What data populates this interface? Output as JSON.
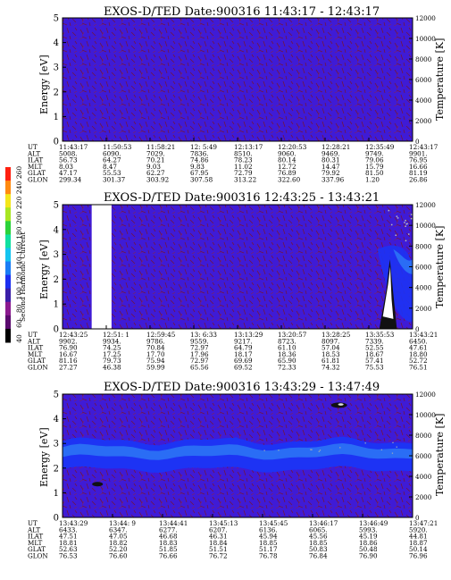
{
  "colors": {
    "background_fill": "#3f1bd6",
    "band_outer": "#1d33f4",
    "band_inner": "#2a6df5",
    "noise": "#7a1428",
    "hot": "#ffffff",
    "gap": "#ffffff"
  },
  "colorbar": {
    "label": "Second Harmonic Current",
    "ticks": [
      "40",
      "60",
      "80",
      "100",
      "120",
      "140",
      "160",
      "180",
      "200",
      "220",
      "240",
      "260"
    ],
    "colors": [
      "#000000",
      "#5a0a6e",
      "#8b1a8f",
      "#3a1ea8",
      "#1c2ff0",
      "#1a7df5",
      "#14c4f0",
      "#10e0a0",
      "#2cd23a",
      "#a8e622",
      "#f4e61a",
      "#ff8a10",
      "#ff2010"
    ]
  },
  "chart_data": [
    {
      "type": "heatmap",
      "title": "EXOS-D/TED   Date:900316   11:43:17 - 12:43:17",
      "ylabel": "Energy [eV]",
      "y2label": "Temperature [K]",
      "ylim": [
        0,
        5
      ],
      "yticks": [
        "0",
        "1",
        "2",
        "3",
        "4",
        "5"
      ],
      "y2lim": [
        0,
        12000
      ],
      "y2ticks": [
        "0",
        "2000",
        "4000",
        "6000",
        "8000",
        "10000",
        "12000"
      ],
      "row_labels": [
        "UT",
        "ALT",
        "ILAT",
        "MLT",
        "GLAT",
        "GLON"
      ],
      "table": [
        [
          "11:43:17",
          "11:50:53",
          "11:58:21",
          "12: 5:49",
          "12:13:17",
          "12:20:53",
          "12:28:21",
          "12:35:49",
          "12:43:17"
        ],
        [
          "5008.",
          "6090.",
          "7029.",
          "7836.",
          "8510.",
          "9060.",
          "9469.",
          "9749.",
          "9901."
        ],
        [
          "56.73",
          "64.27",
          "70.21",
          "74.86",
          "78.23",
          "80.14",
          "80.31",
          "79.06",
          "76.95"
        ],
        [
          "8.03",
          "8.47",
          "9.03",
          "9.83",
          "11.02",
          "12.72",
          "14.47",
          "15.79",
          "16.66"
        ],
        [
          "47.17",
          "55.53",
          "62.27",
          "67.95",
          "72.79",
          "76.89",
          "79.92",
          "81.50",
          "81.19"
        ],
        [
          "299.34",
          "301.37",
          "303.92",
          "307.58",
          "313.22",
          "322.60",
          "337.96",
          "1.20",
          "26.86"
        ]
      ]
    },
    {
      "type": "heatmap",
      "title": "EXOS-D/TED   Date:900316   12:43:25 - 13:43:21",
      "ylabel": "Energy [eV]",
      "y2label": "Temperature [K]",
      "ylim": [
        0,
        5
      ],
      "yticks": [
        "0",
        "1",
        "2",
        "3",
        "4",
        "5"
      ],
      "y2lim": [
        0,
        12000
      ],
      "y2ticks": [
        "0",
        "2000",
        "4000",
        "6000",
        "8000",
        "10000",
        "12000"
      ],
      "data_gap_x": [
        0.0833,
        0.14
      ],
      "row_labels": [
        "UT",
        "ALT",
        "ILAT",
        "MLT",
        "GLAT",
        "GLON"
      ],
      "table": [
        [
          "12:43:25",
          "12:51: 1",
          "12:59:45",
          "13: 6:33",
          "13:13:29",
          "13:20:57",
          "13:28:25",
          "13:35:53",
          "13:43:21"
        ],
        [
          "9902.",
          "9934.",
          "9786.",
          "9559.",
          "9217.",
          "8723.",
          "8097.",
          "7339.",
          "6450."
        ],
        [
          "76.90",
          "74.25",
          "70.84",
          "72.97",
          "64.79",
          "61.10",
          "57.04",
          "52.55",
          "47.61"
        ],
        [
          "16.67",
          "17.25",
          "17.70",
          "17.96",
          "18.17",
          "18.36",
          "18.53",
          "18.67",
          "18.80"
        ],
        [
          "81.16",
          "79.73",
          "75.94",
          "72.97",
          "69.69",
          "65.90",
          "61.81",
          "57.41",
          "52.72"
        ],
        [
          "27.27",
          "46.38",
          "59.99",
          "65.56",
          "69.52",
          "72.33",
          "74.32",
          "75.53",
          "76.51"
        ]
      ]
    },
    {
      "type": "heatmap",
      "title": "EXOS-D/TED   Date:900316   13:43:29 - 13:47:49",
      "ylabel": "Energy [eV]",
      "y2label": "Temperature [K]",
      "ylim": [
        0,
        5
      ],
      "yticks": [
        "0",
        "1",
        "2",
        "3",
        "4",
        "5"
      ],
      "y2lim": [
        0,
        12000
      ],
      "y2ticks": [
        "0",
        "2000",
        "4000",
        "6000",
        "8000",
        "10000",
        "12000"
      ],
      "row_labels": [
        "UT",
        "ALT",
        "ILAT",
        "MLT",
        "GLAT",
        "GLON"
      ],
      "table": [
        [
          "13:43:29",
          "13:44: 9",
          "13:44:41",
          "13:45:13",
          "13:45:45",
          "13:46:17",
          "13:46:49",
          "13:47:21"
        ],
        [
          "6433.",
          "6347.",
          "6277.",
          "6207.",
          "6136.",
          "6065.",
          "5993.",
          "5920."
        ],
        [
          "47.51",
          "47.05",
          "46.68",
          "46.31",
          "45.94",
          "45.56",
          "45.19",
          "44.81"
        ],
        [
          "18.81",
          "18.82",
          "18.83",
          "18.84",
          "18.85",
          "18.85",
          "18.86",
          "18.87"
        ],
        [
          "52.63",
          "52.20",
          "51.85",
          "51.51",
          "51.17",
          "50.83",
          "50.48",
          "50.14"
        ],
        [
          "76.53",
          "76.60",
          "76.66",
          "76.72",
          "76.78",
          "76.84",
          "76.90",
          "76.96"
        ]
      ]
    }
  ]
}
